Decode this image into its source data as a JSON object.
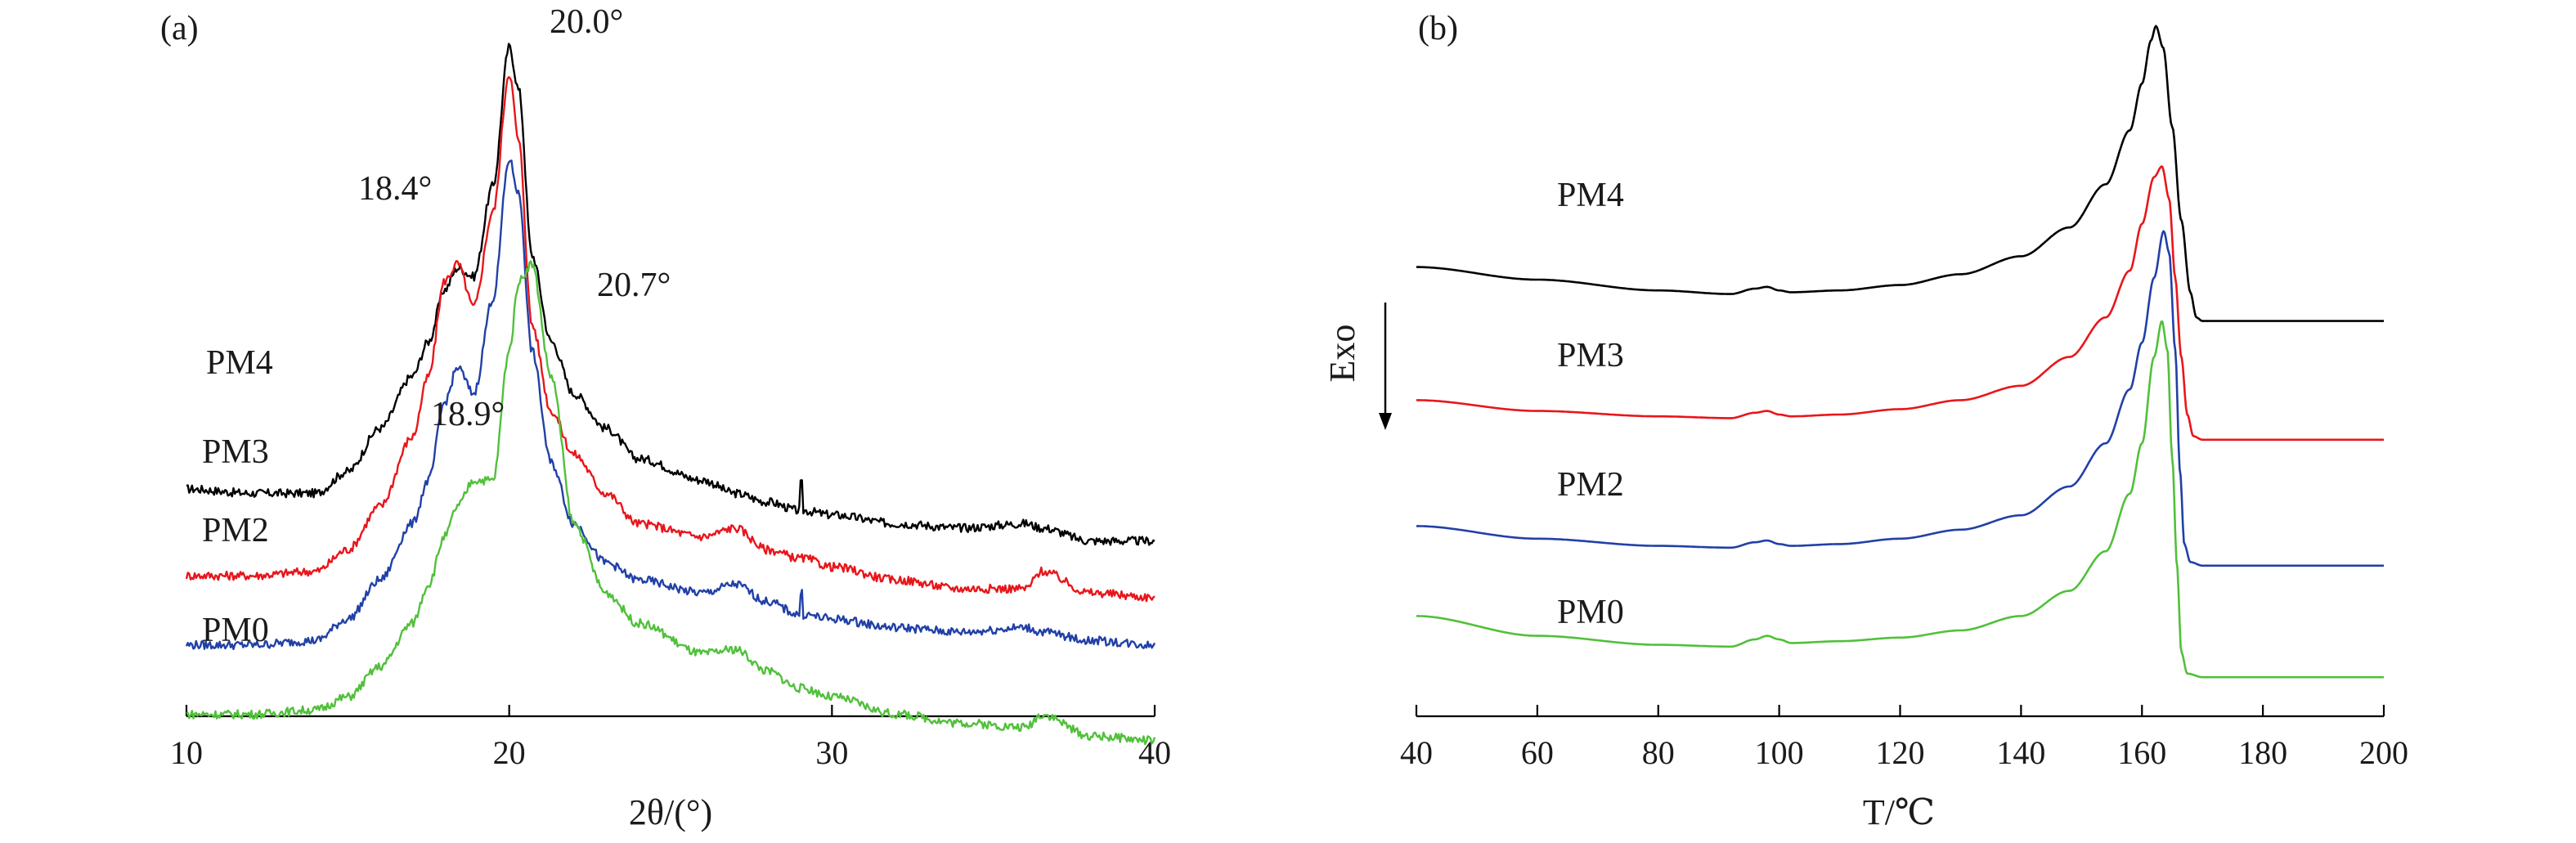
{
  "chart_data": [
    {
      "panel": "(a)",
      "type": "line",
      "title": "",
      "xlabel": "2θ/(°)",
      "ylabel": "",
      "xlim": [
        10,
        40
      ],
      "xticks": [
        "10",
        "20",
        "30",
        "40"
      ],
      "grid": false,
      "x": [
        10,
        12,
        14,
        15,
        16,
        17,
        17.5,
        18,
        18.4,
        18.9,
        19.5,
        20,
        20.3,
        20.7,
        21.3,
        22,
        23,
        24,
        26,
        27,
        28,
        29,
        29.05,
        29.1,
        30,
        32,
        34,
        36,
        36.5,
        38,
        40
      ],
      "series": [
        {
          "name": "PM4",
          "color": "#000000",
          "label": "PM4",
          "values": [
            2.0,
            1.95,
            1.95,
            2.2,
            2.7,
            3.3,
            3.7,
            4.3,
            4.55,
            4.45,
            5.5,
            7.1,
            6.6,
            4.7,
            3.7,
            3.1,
            2.7,
            2.35,
            2.1,
            1.95,
            1.85,
            1.75,
            2.25,
            1.75,
            1.7,
            1.6,
            1.55,
            1.6,
            1.55,
            1.4,
            1.4
          ]
        },
        {
          "name": "PM3",
          "color": "#e8161b",
          "label": "PM3",
          "values": [
            1.0,
            1.0,
            1.05,
            1.3,
            1.8,
            2.6,
            3.3,
            4.4,
            4.6,
            4.1,
            5.2,
            6.8,
            6.0,
            3.9,
            2.9,
            2.4,
            1.95,
            1.6,
            1.45,
            1.55,
            1.3,
            1.2,
            1.2,
            1.2,
            1.1,
            0.95,
            0.85,
            0.85,
            1.05,
            0.8,
            0.75
          ]
        },
        {
          "name": "PM2",
          "color": "#2140a7",
          "label": "PM2",
          "values": [
            0.2,
            0.2,
            0.25,
            0.5,
            0.95,
            1.6,
            2.1,
            3.0,
            3.4,
            3.1,
            4.2,
            5.8,
            5.4,
            3.6,
            2.3,
            1.6,
            1.15,
            0.95,
            0.8,
            0.9,
            0.7,
            0.55,
            0.95,
            0.55,
            0.5,
            0.4,
            0.35,
            0.4,
            0.35,
            0.25,
            0.2
          ]
        },
        {
          "name": "PM0",
          "color": "#51c03b",
          "label": "PM0",
          "values": [
            -0.6,
            -0.6,
            -0.55,
            -0.4,
            -0.05,
            0.45,
            0.9,
            1.45,
            1.8,
            2.1,
            2.1,
            3.6,
            4.4,
            4.6,
            3.3,
            1.6,
            0.8,
            0.45,
            0.1,
            0.15,
            -0.1,
            -0.3,
            -0.3,
            -0.3,
            -0.4,
            -0.6,
            -0.7,
            -0.75,
            -0.6,
            -0.85,
            -0.9
          ]
        }
      ],
      "annotations": [
        {
          "text": "20.0°",
          "x": 20.0
        },
        {
          "text": "18.4°",
          "x": 18.4
        },
        {
          "text": "20.7°",
          "x": 20.7
        },
        {
          "text": "18.9°",
          "x": 18.9
        }
      ]
    },
    {
      "panel": "(b)",
      "type": "line",
      "title": "",
      "xlabel": "T/℃",
      "ylabel": "Exo",
      "xlim": [
        40,
        200
      ],
      "xticks": [
        "40",
        "60",
        "80",
        "100",
        "120",
        "140",
        "160",
        "180",
        "200"
      ],
      "grid": false,
      "series": [
        {
          "name": "PM4",
          "color": "#000000",
          "label": "PM4",
          "x": [
            40,
            60,
            80,
            92,
            96,
            98,
            100,
            102,
            110,
            120,
            130,
            140,
            148,
            154,
            158,
            160,
            161.5,
            162.3,
            163.5,
            165,
            166.5,
            168,
            169,
            170,
            180,
            200
          ],
          "values": [
            11.1,
            10.75,
            10.45,
            10.35,
            10.5,
            10.55,
            10.45,
            10.4,
            10.45,
            10.6,
            10.9,
            11.4,
            12.2,
            13.4,
            14.9,
            16.2,
            17.4,
            17.8,
            17.2,
            15.0,
            12.4,
            10.4,
            9.7,
            9.6,
            9.6,
            9.6
          ]
        },
        {
          "name": "PM3",
          "color": "#e8161b",
          "label": "PM3",
          "x": [
            40,
            60,
            80,
            92,
            96,
            98,
            100,
            102,
            110,
            120,
            130,
            140,
            148,
            154,
            158,
            160,
            162,
            163.3,
            164.5,
            165.5,
            166.5,
            167.5,
            168.5,
            170,
            180,
            200
          ],
          "values": [
            7.4,
            7.1,
            6.95,
            6.9,
            7.05,
            7.1,
            7.0,
            6.95,
            7.0,
            7.15,
            7.4,
            7.8,
            8.6,
            9.7,
            11.0,
            12.3,
            13.6,
            13.9,
            13.0,
            10.8,
            8.6,
            7.0,
            6.4,
            6.3,
            6.3,
            6.3
          ]
        },
        {
          "name": "PM2",
          "color": "#2140a7",
          "label": "PM2",
          "x": [
            40,
            60,
            80,
            92,
            96,
            98,
            100,
            102,
            110,
            120,
            130,
            140,
            148,
            154,
            158,
            160,
            162,
            163.6,
            164.5,
            165.5,
            166.3,
            167,
            168,
            170,
            180,
            200
          ],
          "values": [
            3.9,
            3.55,
            3.35,
            3.3,
            3.45,
            3.5,
            3.4,
            3.35,
            3.4,
            3.55,
            3.8,
            4.2,
            5.0,
            6.2,
            7.7,
            9.0,
            10.8,
            12.1,
            11.5,
            8.8,
            5.4,
            3.4,
            2.9,
            2.8,
            2.8,
            2.8
          ]
        },
        {
          "name": "PM0",
          "color": "#51c03b",
          "label": "PM0",
          "x": [
            40,
            60,
            80,
            92,
            96,
            98,
            100,
            102,
            110,
            120,
            130,
            140,
            148,
            154,
            158,
            160,
            162,
            163.3,
            164.2,
            165,
            165.8,
            166.5,
            167.5,
            170,
            180,
            200
          ],
          "values": [
            1.4,
            0.85,
            0.6,
            0.55,
            0.75,
            0.85,
            0.75,
            0.65,
            0.7,
            0.8,
            1.0,
            1.4,
            2.1,
            3.2,
            4.8,
            6.2,
            8.6,
            9.6,
            8.8,
            5.8,
            2.8,
            0.4,
            -0.2,
            -0.3,
            -0.3,
            -0.3
          ]
        }
      ]
    }
  ]
}
